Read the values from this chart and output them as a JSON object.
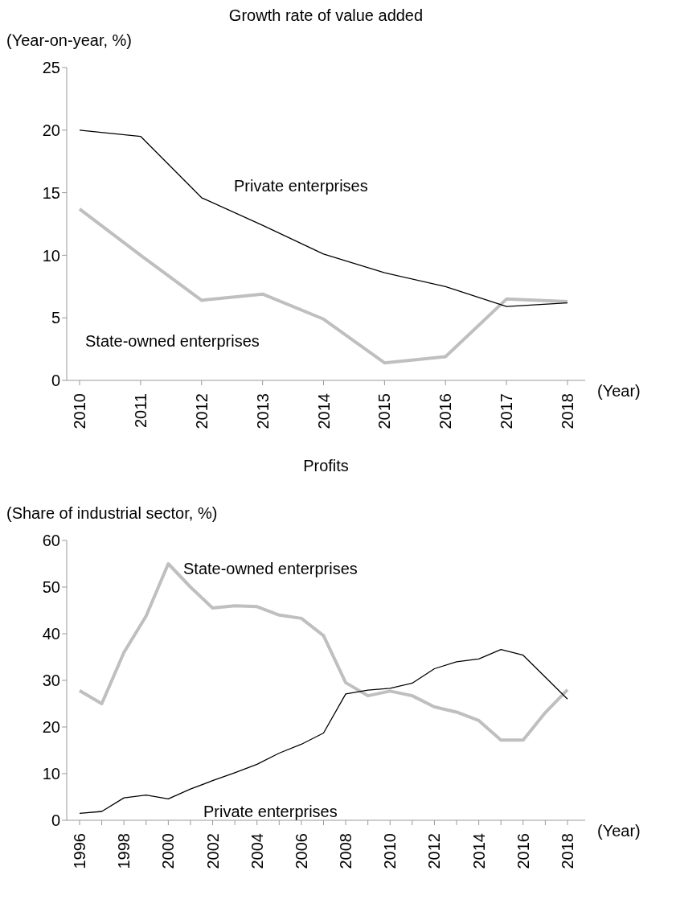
{
  "chart_data": [
    {
      "type": "line",
      "title": "Growth rate of value added",
      "ylabel": "(Year-on-year, %)",
      "xlabel": "(Year)",
      "categories": [
        "2010",
        "2011",
        "2012",
        "2013",
        "2014",
        "2015",
        "2016",
        "2017",
        "2018"
      ],
      "ylim": [
        0,
        25
      ],
      "yticks": [
        0,
        5,
        10,
        15,
        20,
        25
      ],
      "grid": false,
      "legend": false,
      "marker": "none",
      "line_style": "solid",
      "series": [
        {
          "name": "Private enterprises",
          "color": "#000000",
          "values": [
            20.0,
            19.5,
            14.6,
            12.4,
            10.1,
            8.6,
            7.5,
            5.9,
            6.2
          ]
        },
        {
          "name": "State-owned enterprises",
          "color": "#bfbfbf",
          "values": [
            13.7,
            10.0,
            6.4,
            6.9,
            4.9,
            1.4,
            1.9,
            6.5,
            6.3
          ]
        }
      ]
    },
    {
      "type": "line",
      "title": "Profits",
      "ylabel": "(Share of industrial sector, %)",
      "xlabel": "(Year)",
      "categories": [
        "1996",
        null,
        "1998",
        null,
        "2000",
        null,
        "2002",
        null,
        "2004",
        null,
        "2006",
        null,
        "2008",
        null,
        "2010",
        null,
        "2012",
        null,
        "2014",
        null,
        "2016",
        null,
        "2018"
      ],
      "ylim": [
        0,
        60
      ],
      "yticks": [
        0,
        10,
        20,
        30,
        40,
        50,
        60
      ],
      "grid": false,
      "legend": false,
      "marker": "none",
      "line_style": "solid",
      "series": [
        {
          "name": "State-owned enterprises",
          "color": "#bfbfbf",
          "values": [
            27.8,
            25.0,
            36.0,
            43.8,
            55.0,
            50.0,
            45.5,
            46.0,
            45.8,
            44.0,
            43.3,
            39.6,
            29.5,
            26.7,
            27.7,
            26.7,
            24.3,
            23.2,
            21.4,
            17.2,
            17.2,
            23.1,
            28.0
          ]
        },
        {
          "name": "Private enterprises",
          "color": "#000000",
          "values": [
            1.5,
            1.9,
            4.8,
            5.4,
            4.6,
            6.7,
            8.5,
            10.2,
            12.0,
            14.4,
            16.3,
            18.7,
            27.1,
            27.9,
            28.3,
            29.4,
            32.5,
            34.0,
            34.6,
            36.6,
            35.4,
            30.7,
            26.0
          ]
        }
      ]
    }
  ]
}
